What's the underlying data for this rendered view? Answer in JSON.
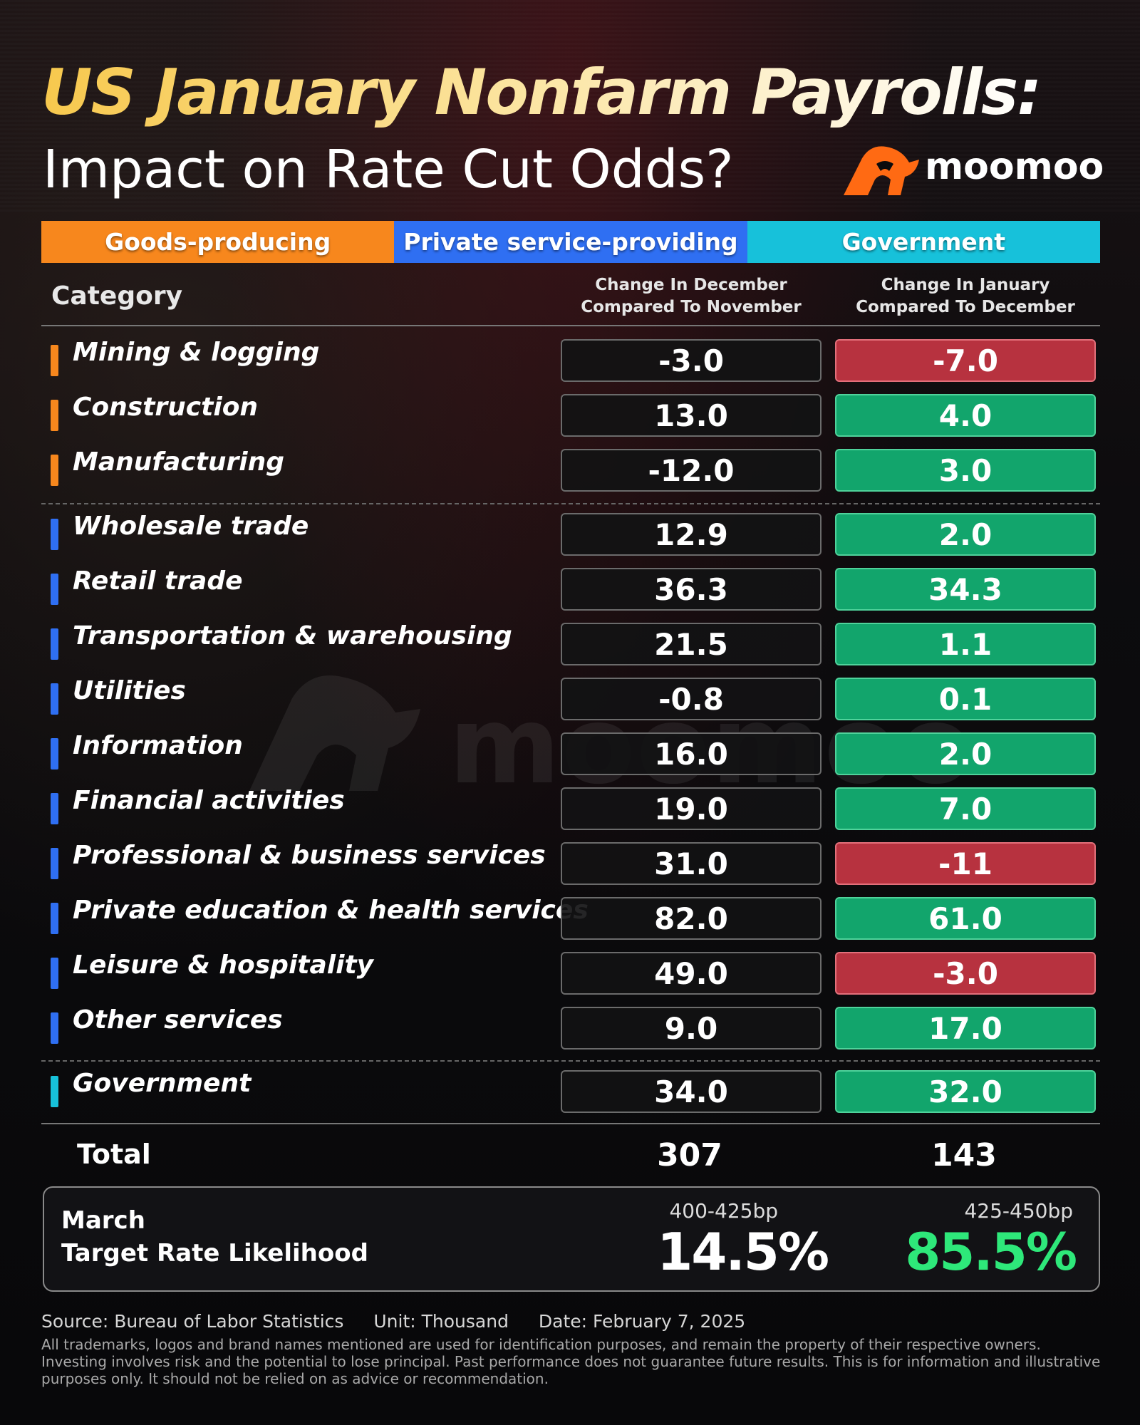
{
  "title": {
    "line1": "US January Nonfarm Payrolls:",
    "line2": "Impact on Rate Cut Odds?"
  },
  "brand": {
    "name": "moomoo",
    "logo_icon": "moomoo-bull-logo-icon",
    "color": "#ff6a13"
  },
  "legend": [
    {
      "label": "Goods-producing",
      "color": "#f7871d"
    },
    {
      "label": "Private service-providing",
      "color": "#2f6ff2"
    },
    {
      "label": "Government",
      "color": "#17c1da"
    }
  ],
  "chart_data": {
    "type": "table",
    "columns": {
      "category": "Category",
      "dec": "Change In December Compared To November",
      "dec_line1": "Change In December",
      "dec_line2": "Compared To November",
      "jan": "Change In January Compared To December",
      "jan_line1": "Change In January",
      "jan_line2": "Compared To December"
    },
    "rows": [
      {
        "category": "Mining & logging",
        "group": "Goods-producing",
        "dec": "-3.0",
        "jan": "-7.0"
      },
      {
        "category": "Construction",
        "group": "Goods-producing",
        "dec": "13.0",
        "jan": "4.0"
      },
      {
        "category": "Manufacturing",
        "group": "Goods-producing",
        "dec": "-12.0",
        "jan": "3.0"
      },
      {
        "category": "Wholesale trade",
        "group": "Private service-providing",
        "dec": "12.9",
        "jan": "2.0"
      },
      {
        "category": "Retail trade",
        "group": "Private service-providing",
        "dec": "36.3",
        "jan": "34.3"
      },
      {
        "category": "Transportation & warehousing",
        "group": "Private service-providing",
        "dec": "21.5",
        "jan": "1.1"
      },
      {
        "category": "Utilities",
        "group": "Private service-providing",
        "dec": "-0.8",
        "jan": "0.1"
      },
      {
        "category": "Information",
        "group": "Private service-providing",
        "dec": "16.0",
        "jan": "2.0"
      },
      {
        "category": "Financial activities",
        "group": "Private service-providing",
        "dec": "19.0",
        "jan": "7.0"
      },
      {
        "category": "Professional & business services",
        "group": "Private service-providing",
        "dec": "31.0",
        "jan": "-11"
      },
      {
        "category": "Private education & health services",
        "group": "Private service-providing",
        "dec": "82.0",
        "jan": "61.0"
      },
      {
        "category": "Leisure & hospitality",
        "group": "Private service-providing",
        "dec": "49.0",
        "jan": "-3.0"
      },
      {
        "category": "Other services",
        "group": "Private service-providing",
        "dec": "9.0",
        "jan": "17.0"
      },
      {
        "category": "Government",
        "group": "Government",
        "dec": "34.0",
        "jan": "32.0"
      }
    ],
    "total": {
      "label": "Total",
      "dec": "307",
      "jan": "143"
    },
    "colors": {
      "positive": "#12a56c",
      "negative": "#b7323f"
    }
  },
  "rate_likelihood": {
    "month": "March",
    "label": "Target Rate Likelihood",
    "options": [
      {
        "range": "400-425bp",
        "value": "14.5%",
        "color": "#ffffff"
      },
      {
        "range": "425-450bp",
        "value": "85.5%",
        "color": "#2ee87a"
      }
    ]
  },
  "footer": {
    "source": "Source: Bureau of Labor Statistics",
    "unit": "Unit: Thousand",
    "date": "Date: February 7, 2025",
    "disclaimer": "All trademarks, logos and brand names mentioned are used for identification purposes, and remain the property of their respective owners. Investing involves risk and the potential to lose principal. Past performance does not guarantee future results. This is for information and illustrative purposes only. It should not be relied on as advice or recommendation."
  }
}
